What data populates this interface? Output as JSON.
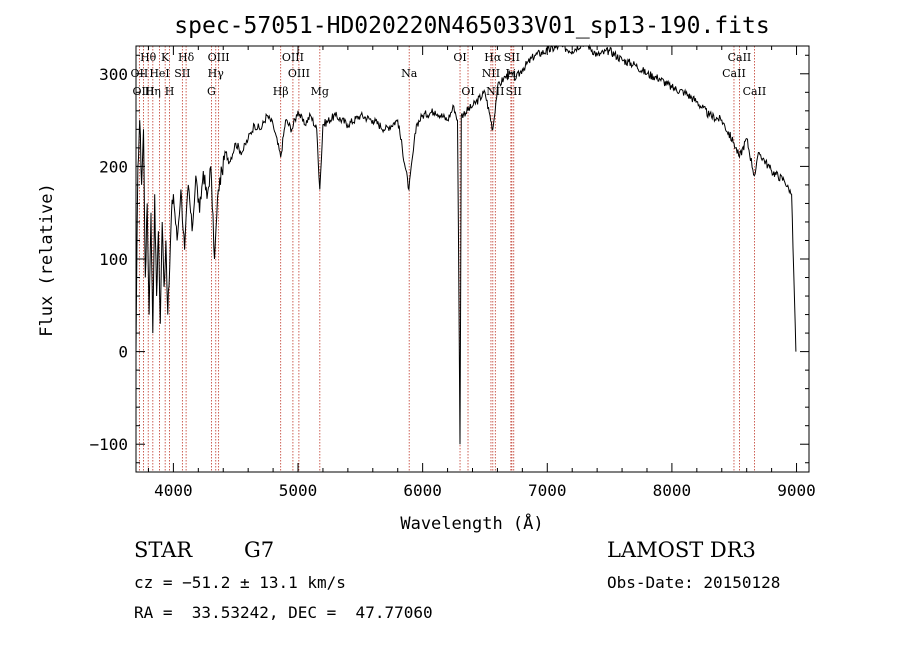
{
  "chart_data": {
    "type": "line",
    "title": "spec-57051-HD020220N465033V01_sp13-190.fits",
    "xlabel": "Wavelength (Å)",
    "ylabel": "Flux (relative)",
    "xlim": [
      3700,
      9100
    ],
    "ylim": [
      -130,
      330
    ],
    "xticks": [
      4000,
      5000,
      6000,
      7000,
      8000,
      9000
    ],
    "yticks": [
      -100,
      0,
      100,
      200,
      300
    ],
    "xtick_labels": [
      "4000",
      "5000",
      "6000",
      "7000",
      "8000",
      "9000"
    ],
    "ytick_labels": [
      "−100",
      "0",
      "100",
      "200",
      "300"
    ],
    "grid": false,
    "series": [
      {
        "name": "flux",
        "points": [
          [
            3700,
            0
          ],
          [
            3715,
            200
          ],
          [
            3730,
            250
          ],
          [
            3745,
            180
          ],
          [
            3760,
            240
          ],
          [
            3775,
            80
          ],
          [
            3790,
            160
          ],
          [
            3805,
            40
          ],
          [
            3820,
            150
          ],
          [
            3835,
            20
          ],
          [
            3850,
            170
          ],
          [
            3865,
            60
          ],
          [
            3880,
            130
          ],
          [
            3895,
            30
          ],
          [
            3910,
            140
          ],
          [
            3925,
            70
          ],
          [
            3940,
            120
          ],
          [
            3955,
            40
          ],
          [
            3970,
            90
          ],
          [
            3985,
            150
          ],
          [
            4000,
            170
          ],
          [
            4030,
            120
          ],
          [
            4060,
            175
          ],
          [
            4090,
            110
          ],
          [
            4120,
            180
          ],
          [
            4150,
            130
          ],
          [
            4180,
            190
          ],
          [
            4210,
            150
          ],
          [
            4240,
            195
          ],
          [
            4270,
            165
          ],
          [
            4300,
            200
          ],
          [
            4330,
            100
          ],
          [
            4360,
            175
          ],
          [
            4390,
            195
          ],
          [
            4420,
            215
          ],
          [
            4450,
            205
          ],
          [
            4500,
            225
          ],
          [
            4550,
            215
          ],
          [
            4600,
            230
          ],
          [
            4650,
            245
          ],
          [
            4700,
            240
          ],
          [
            4750,
            255
          ],
          [
            4800,
            245
          ],
          [
            4861,
            210
          ],
          [
            4900,
            250
          ],
          [
            4950,
            240
          ],
          [
            5000,
            260
          ],
          [
            5050,
            245
          ],
          [
            5100,
            255
          ],
          [
            5150,
            240
          ],
          [
            5175,
            175
          ],
          [
            5200,
            245
          ],
          [
            5300,
            255
          ],
          [
            5400,
            245
          ],
          [
            5500,
            255
          ],
          [
            5600,
            250
          ],
          [
            5700,
            240
          ],
          [
            5800,
            250
          ],
          [
            5890,
            175
          ],
          [
            5950,
            245
          ],
          [
            6000,
            255
          ],
          [
            6100,
            260
          ],
          [
            6200,
            250
          ],
          [
            6250,
            265
          ],
          [
            6280,
            250
          ],
          [
            6300,
            -100
          ],
          [
            6310,
            255
          ],
          [
            6400,
            265
          ],
          [
            6500,
            280
          ],
          [
            6563,
            240
          ],
          [
            6600,
            285
          ],
          [
            6650,
            295
          ],
          [
            6700,
            300
          ],
          [
            6750,
            295
          ],
          [
            6800,
            305
          ],
          [
            6900,
            320
          ],
          [
            7000,
            325
          ],
          [
            7100,
            330
          ],
          [
            7200,
            325
          ],
          [
            7300,
            335
          ],
          [
            7400,
            320
          ],
          [
            7500,
            325
          ],
          [
            7600,
            315
          ],
          [
            7700,
            310
          ],
          [
            7800,
            300
          ],
          [
            7900,
            295
          ],
          [
            8000,
            285
          ],
          [
            8100,
            280
          ],
          [
            8200,
            270
          ],
          [
            8300,
            255
          ],
          [
            8400,
            250
          ],
          [
            8498,
            225
          ],
          [
            8542,
            210
          ],
          [
            8600,
            230
          ],
          [
            8662,
            190
          ],
          [
            8700,
            215
          ],
          [
            8800,
            195
          ],
          [
            8900,
            185
          ],
          [
            8960,
            170
          ],
          [
            8995,
            0
          ]
        ]
      }
    ],
    "spectral_lines": [
      {
        "label": "Hθ",
        "wavelength": 3798,
        "row": 0
      },
      {
        "label": "OII",
        "wavelength": 3727,
        "row": 1
      },
      {
        "label": "OIII",
        "wavelength": 3760,
        "row": 2
      },
      {
        "label": "Hη",
        "wavelength": 3835,
        "row": 2
      },
      {
        "label": "K",
        "wavelength": 3934,
        "row": 0
      },
      {
        "label": "H",
        "wavelength": 3969,
        "row": 2
      },
      {
        "label": "HeI",
        "wavelength": 3889,
        "row": 1
      },
      {
        "label": "SII",
        "wavelength": 4072,
        "row": 1
      },
      {
        "label": "Hδ",
        "wavelength": 4102,
        "row": 0
      },
      {
        "label": "OIII",
        "wavelength": 4363,
        "row": 0
      },
      {
        "label": "Hγ",
        "wavelength": 4340,
        "row": 1
      },
      {
        "label": "G",
        "wavelength": 4305,
        "row": 2
      },
      {
        "label": "Hβ",
        "wavelength": 4861,
        "row": 2
      },
      {
        "label": "OIII",
        "wavelength": 4959,
        "row": 0
      },
      {
        "label": "OIII",
        "wavelength": 5007,
        "row": 1
      },
      {
        "label": "Mg",
        "wavelength": 5175,
        "row": 2
      },
      {
        "label": "Na",
        "wavelength": 5892,
        "row": 1
      },
      {
        "label": "OI",
        "wavelength": 6300,
        "row": 0
      },
      {
        "label": "OI",
        "wavelength": 6364,
        "row": 2
      },
      {
        "label": "Hα",
        "wavelength": 6563,
        "row": 0
      },
      {
        "label": "NII",
        "wavelength": 6548,
        "row": 1
      },
      {
        "label": "NII",
        "wavelength": 6583,
        "row": 2
      },
      {
        "label": "SII",
        "wavelength": 6716,
        "row": 0
      },
      {
        "label": "Li",
        "wavelength": 6708,
        "row": 1
      },
      {
        "label": "SII",
        "wavelength": 6731,
        "row": 2
      },
      {
        "label": "CaII",
        "wavelength": 8542,
        "row": 0
      },
      {
        "label": "CaII",
        "wavelength": 8498,
        "row": 1
      },
      {
        "label": "CaII",
        "wavelength": 8662,
        "row": 2
      }
    ]
  },
  "info": {
    "object_class": "STAR",
    "subclass": "G7",
    "survey": "LAMOST DR3",
    "redshift": "cz = −51.2 ± 13.1 km/s",
    "obs_date": "Obs-Date: 20150128",
    "coords": "RA =  33.53242, DEC =  47.77060"
  }
}
